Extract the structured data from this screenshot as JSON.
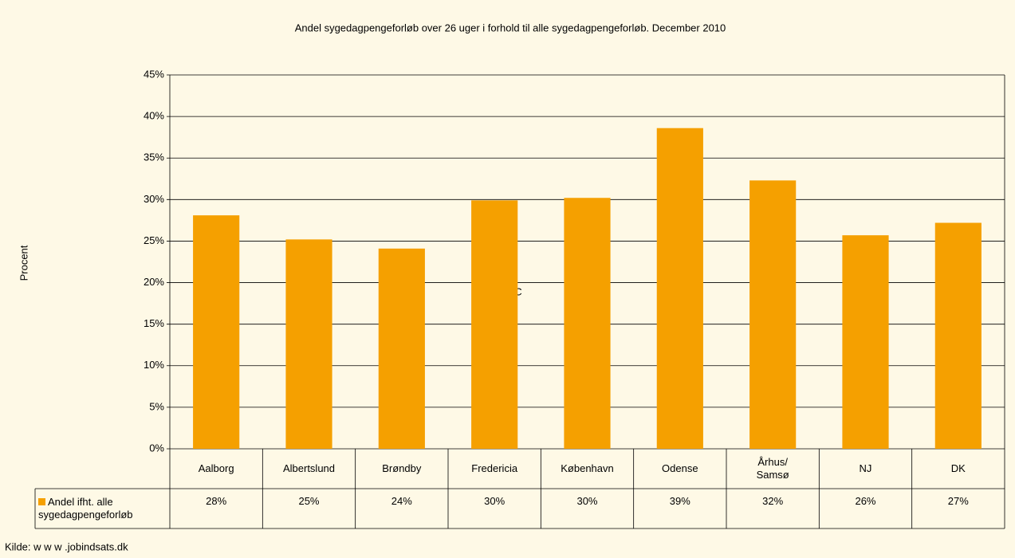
{
  "chart_data": {
    "type": "bar",
    "title": "Andel sygedagpengeforløb over 26 uger i forhold til alle sygedagpengeforløb. December 2010",
    "y_label": "Procent",
    "source": "Kilde: w w w .jobindsats.dk",
    "annotation": "C",
    "categories": [
      "Aalborg",
      "Albertslund",
      "Brøndby",
      "Fredericia",
      "København",
      "Odense",
      "Århus/ Samsø",
      "NJ",
      "DK"
    ],
    "series": [
      {
        "name": "Andel ifht. alle sygedagpengeforløb",
        "color": "#f5a000",
        "values": [
          28.1,
          25.2,
          24.1,
          29.9,
          30.2,
          38.6,
          32.3,
          25.7,
          27.2
        ],
        "value_labels": [
          "28%",
          "25%",
          "24%",
          "30%",
          "30%",
          "39%",
          "32%",
          "26%",
          "27%"
        ]
      }
    ],
    "ylim": [
      0,
      45
    ],
    "yticks": [
      {
        "value": 0,
        "label": "0%"
      },
      {
        "value": 5,
        "label": "5%"
      },
      {
        "value": 10,
        "label": "10%"
      },
      {
        "value": 15,
        "label": "15%"
      },
      {
        "value": 20,
        "label": "20%"
      },
      {
        "value": 25,
        "label": "25%"
      },
      {
        "value": 30,
        "label": "30%"
      },
      {
        "value": 35,
        "label": "35%"
      },
      {
        "value": 40,
        "label": "40%"
      },
      {
        "value": 45,
        "label": "45%"
      }
    ],
    "grid": true
  }
}
